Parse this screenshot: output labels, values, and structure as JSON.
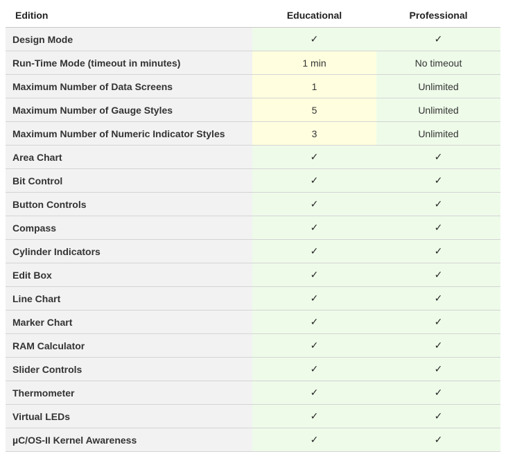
{
  "header": {
    "feature": "Edition",
    "educational": "Educational",
    "professional": "Professional"
  },
  "check_glyph": "✓",
  "colors": {
    "feature_bg": "#f2f2f2",
    "included_bg": "#eefbe9",
    "limited_bg": "#ffffdf",
    "border": "#d4d4d4"
  },
  "rows": [
    {
      "feature": "Design Mode",
      "educational": "✓",
      "professional": "✓"
    },
    {
      "feature": "Run-Time Mode (timeout in minutes)",
      "educational": "1 min",
      "professional": "No timeout"
    },
    {
      "feature": "Maximum Number of Data Screens",
      "educational": "1",
      "professional": "Unlimited"
    },
    {
      "feature": "Maximum Number of Gauge Styles",
      "educational": "5",
      "professional": "Unlimited"
    },
    {
      "feature": "Maximum Number of Numeric Indicator Styles",
      "educational": "3",
      "professional": "Unlimited"
    },
    {
      "feature": "Area Chart",
      "educational": "✓",
      "professional": "✓"
    },
    {
      "feature": "Bit Control",
      "educational": "✓",
      "professional": "✓"
    },
    {
      "feature": "Button Controls",
      "educational": "✓",
      "professional": "✓"
    },
    {
      "feature": "Compass",
      "educational": "✓",
      "professional": "✓"
    },
    {
      "feature": "Cylinder Indicators",
      "educational": "✓",
      "professional": "✓"
    },
    {
      "feature": "Edit Box",
      "educational": "✓",
      "professional": "✓"
    },
    {
      "feature": "Line Chart",
      "educational": "✓",
      "professional": "✓"
    },
    {
      "feature": "Marker Chart",
      "educational": "✓",
      "professional": "✓"
    },
    {
      "feature": "RAM Calculator",
      "educational": "✓",
      "professional": "✓"
    },
    {
      "feature": "Slider Controls",
      "educational": "✓",
      "professional": "✓"
    },
    {
      "feature": "Thermometer",
      "educational": "✓",
      "professional": "✓"
    },
    {
      "feature": "Virtual LEDs",
      "educational": "✓",
      "professional": "✓"
    },
    {
      "feature": "µC/OS-II Kernel Awareness",
      "educational": "✓",
      "professional": "✓"
    }
  ]
}
